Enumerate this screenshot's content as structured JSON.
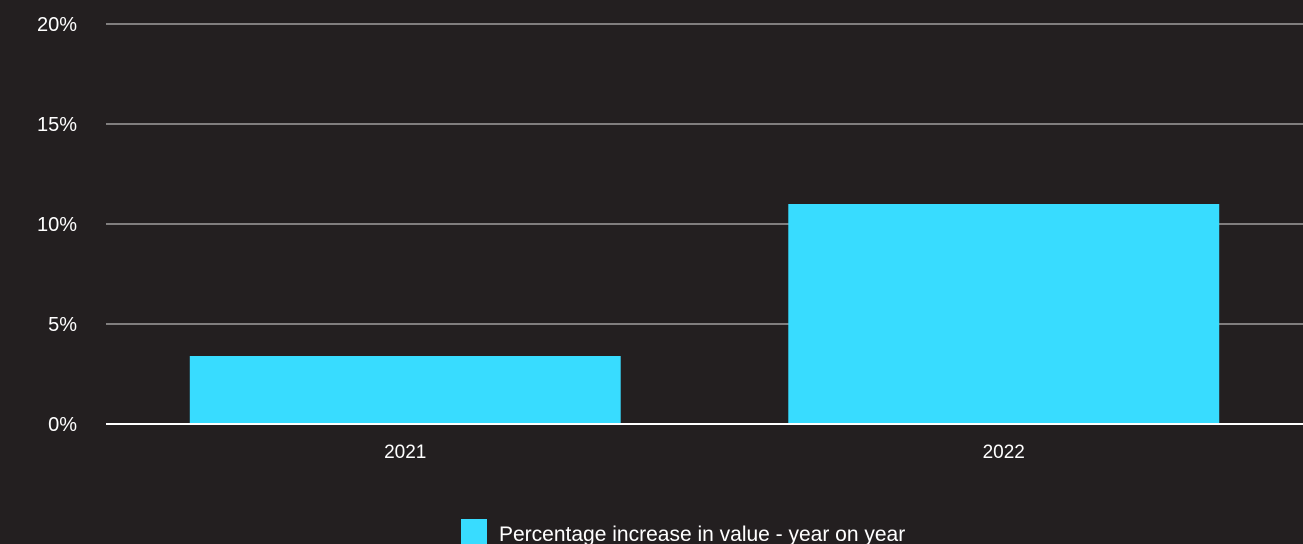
{
  "chart_data": {
    "type": "bar",
    "categories": [
      "2021",
      "2022"
    ],
    "series": [
      {
        "name": "Percentage increase in value - year on year",
        "values": [
          3.4,
          11.0
        ],
        "color": "#38dcff"
      }
    ],
    "ylim": [
      0,
      20
    ],
    "yticks": [
      "0%",
      "5%",
      "10%",
      "15%",
      "20%"
    ],
    "ytick_values": [
      0,
      5,
      10,
      15,
      20
    ],
    "grid": true,
    "legend": "bottom-center",
    "background": "#231f20",
    "text_color": "#ffffff"
  }
}
